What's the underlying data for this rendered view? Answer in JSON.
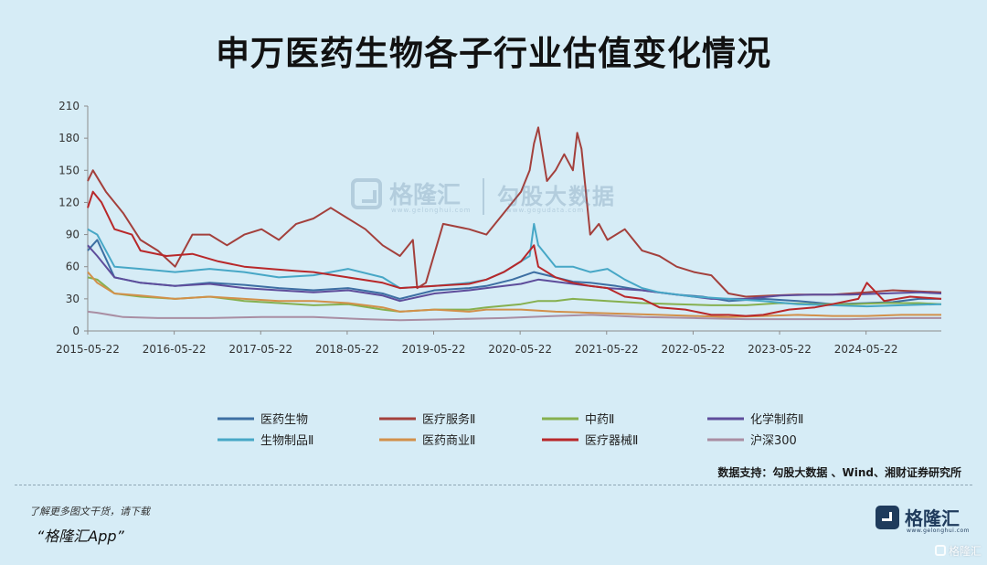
{
  "title": "申万医药生物各子行业估值变化情况",
  "watermark": {
    "name": "格隆汇",
    "url_a": "www.gelonghui.com",
    "name2": "勾股大数据",
    "url_b": "www.gogudata.com"
  },
  "source": "数据支持：勾股大数据 、Wind、湘财证券研究所",
  "promo": {
    "line1": "了解更多图文干货，请下载",
    "line2": "“格隆汇App”"
  },
  "brand": {
    "name": "格隆汇",
    "url": "www.gelonghui.com"
  },
  "corner": "格隆汇",
  "colors": {
    "background": "#d6ecf6",
    "axis": "#8c8c8c"
  },
  "chart_data": {
    "type": "line",
    "title": "申万医药生物各子行业估值变化情况",
    "x_labels": [
      "2015-05-22",
      "2016-05-22",
      "2017-05-22",
      "2018-05-22",
      "2019-05-22",
      "2020-05-22",
      "2021-05-22",
      "2022-05-22",
      "2023-05-22",
      "2024-05-22"
    ],
    "x_range": [
      2015.39,
      2025.26
    ],
    "ylim": [
      0,
      210
    ],
    "y_ticks": [
      0,
      30,
      60,
      90,
      120,
      150,
      180,
      210
    ],
    "grid": false,
    "legend_position": "bottom",
    "series": [
      {
        "name": "医药生物",
        "color": "#3d6fa3",
        "x": [
          2015.39,
          2015.5,
          2015.7,
          2016.0,
          2016.4,
          2016.8,
          2017.2,
          2017.6,
          2018.0,
          2018.4,
          2018.8,
          2019.0,
          2019.4,
          2019.8,
          2020.0,
          2020.3,
          2020.55,
          2020.8,
          2021.0,
          2021.2,
          2021.5,
          2021.8,
          2022.2,
          2022.5,
          2022.8,
          2023.2,
          2023.6,
          2024.0,
          2024.4,
          2024.7,
          2025.0,
          2025.26
        ],
        "y": [
          75,
          85,
          50,
          45,
          42,
          45,
          43,
          40,
          38,
          40,
          35,
          30,
          38,
          40,
          42,
          48,
          55,
          50,
          46,
          45,
          42,
          38,
          34,
          32,
          28,
          30,
          28,
          25,
          26,
          27,
          30,
          30
        ]
      },
      {
        "name": "医疗服务Ⅱ",
        "color": "#a3403c",
        "x": [
          2015.39,
          2015.45,
          2015.6,
          2015.8,
          2016.0,
          2016.2,
          2016.4,
          2016.6,
          2016.8,
          2017.0,
          2017.2,
          2017.4,
          2017.6,
          2017.8,
          2018.0,
          2018.2,
          2018.4,
          2018.6,
          2018.8,
          2019.0,
          2019.15,
          2019.2,
          2019.3,
          2019.5,
          2019.8,
          2020.0,
          2020.2,
          2020.4,
          2020.5,
          2020.55,
          2020.6,
          2020.7,
          2020.8,
          2020.9,
          2021.0,
          2021.05,
          2021.1,
          2021.2,
          2021.3,
          2021.4,
          2021.6,
          2021.8,
          2022.0,
          2022.2,
          2022.4,
          2022.6,
          2022.8,
          2023.0,
          2023.3,
          2023.6,
          2024.0,
          2024.4,
          2024.7,
          2025.0,
          2025.26
        ],
        "y": [
          140,
          150,
          130,
          110,
          85,
          75,
          60,
          90,
          90,
          80,
          90,
          95,
          85,
          100,
          105,
          115,
          105,
          95,
          80,
          70,
          85,
          40,
          45,
          100,
          95,
          90,
          110,
          130,
          150,
          175,
          190,
          140,
          150,
          165,
          150,
          185,
          170,
          90,
          100,
          85,
          95,
          75,
          70,
          60,
          55,
          52,
          35,
          32,
          33,
          34,
          34,
          36,
          38,
          37,
          36
        ]
      },
      {
        "name": "中药Ⅱ",
        "color": "#86b04f",
        "x": [
          2015.39,
          2015.5,
          2015.7,
          2016.0,
          2016.4,
          2016.8,
          2017.2,
          2017.6,
          2018.0,
          2018.4,
          2018.8,
          2019.0,
          2019.4,
          2019.8,
          2020.0,
          2020.4,
          2020.6,
          2020.8,
          2021.0,
          2021.4,
          2021.8,
          2022.2,
          2022.6,
          2023.0,
          2023.4,
          2023.8,
          2024.2,
          2024.6,
          2025.0,
          2025.26
        ],
        "y": [
          50,
          48,
          35,
          32,
          30,
          32,
          28,
          26,
          24,
          25,
          20,
          18,
          20,
          20,
          22,
          25,
          28,
          28,
          30,
          28,
          26,
          25,
          24,
          24,
          26,
          25,
          25,
          26,
          26,
          25
        ]
      },
      {
        "name": "化学制药Ⅱ",
        "color": "#5e4d9b",
        "x": [
          2015.39,
          2015.5,
          2015.7,
          2016.0,
          2016.4,
          2016.8,
          2017.2,
          2017.6,
          2018.0,
          2018.4,
          2018.8,
          2019.0,
          2019.4,
          2019.8,
          2020.0,
          2020.4,
          2020.6,
          2020.8,
          2021.0,
          2021.4,
          2021.8,
          2022.2,
          2022.6,
          2023.0,
          2023.4,
          2023.8,
          2024.2,
          2024.6,
          2025.0,
          2025.26
        ],
        "y": [
          80,
          70,
          50,
          45,
          42,
          44,
          40,
          38,
          36,
          38,
          33,
          28,
          35,
          38,
          40,
          44,
          48,
          46,
          44,
          40,
          38,
          34,
          30,
          30,
          33,
          34,
          34,
          35,
          36,
          35
        ]
      },
      {
        "name": "生物制品Ⅱ",
        "color": "#47a7c6",
        "x": [
          2015.39,
          2015.5,
          2015.7,
          2016.0,
          2016.4,
          2016.8,
          2017.2,
          2017.6,
          2018.0,
          2018.2,
          2018.4,
          2018.8,
          2019.0,
          2019.4,
          2019.8,
          2020.0,
          2020.2,
          2020.4,
          2020.5,
          2020.55,
          2020.6,
          2020.8,
          2021.0,
          2021.2,
          2021.4,
          2021.6,
          2021.8,
          2022.0,
          2022.4,
          2022.8,
          2023.2,
          2023.6,
          2024.0,
          2024.4,
          2024.8,
          2025.26
        ],
        "y": [
          95,
          90,
          60,
          58,
          55,
          58,
          55,
          50,
          52,
          55,
          58,
          50,
          40,
          42,
          45,
          48,
          55,
          65,
          70,
          100,
          80,
          60,
          60,
          55,
          58,
          48,
          40,
          36,
          32,
          30,
          28,
          25,
          24,
          23,
          24,
          25
        ]
      },
      {
        "name": "医药商业Ⅱ",
        "color": "#d2904a",
        "x": [
          2015.39,
          2015.5,
          2015.7,
          2016.0,
          2016.4,
          2016.8,
          2017.2,
          2017.6,
          2018.0,
          2018.4,
          2018.8,
          2019.0,
          2019.4,
          2019.8,
          2020.0,
          2020.4,
          2020.8,
          2021.2,
          2021.6,
          2022.0,
          2022.4,
          2022.8,
          2023.2,
          2023.6,
          2024.0,
          2024.4,
          2024.8,
          2025.26
        ],
        "y": [
          55,
          45,
          35,
          33,
          30,
          32,
          30,
          28,
          28,
          26,
          22,
          18,
          20,
          18,
          20,
          20,
          18,
          17,
          16,
          15,
          14,
          13,
          14,
          15,
          14,
          14,
          15,
          15
        ]
      },
      {
        "name": "医疗器械Ⅱ",
        "color": "#b8282a",
        "x": [
          2015.39,
          2015.45,
          2015.55,
          2015.7,
          2015.9,
          2016.0,
          2016.3,
          2016.6,
          2016.9,
          2017.2,
          2017.5,
          2017.8,
          2018.0,
          2018.4,
          2018.8,
          2019.0,
          2019.4,
          2019.8,
          2020.0,
          2020.2,
          2020.4,
          2020.5,
          2020.55,
          2020.6,
          2020.8,
          2021.0,
          2021.2,
          2021.4,
          2021.6,
          2021.8,
          2022.0,
          2022.3,
          2022.6,
          2022.8,
          2023.0,
          2023.2,
          2023.5,
          2023.8,
          2024.0,
          2024.3,
          2024.4,
          2024.6,
          2024.9,
          2025.26
        ],
        "y": [
          115,
          130,
          120,
          95,
          90,
          75,
          70,
          72,
          65,
          60,
          58,
          56,
          55,
          50,
          45,
          40,
          42,
          44,
          48,
          55,
          65,
          75,
          80,
          60,
          50,
          45,
          42,
          40,
          32,
          30,
          22,
          20,
          15,
          15,
          14,
          15,
          20,
          22,
          25,
          30,
          45,
          28,
          32,
          30
        ]
      },
      {
        "name": "沪深300",
        "color": "#a98ea3",
        "x": [
          2015.39,
          2015.5,
          2015.8,
          2016.2,
          2016.8,
          2017.4,
          2018.0,
          2018.6,
          2019.0,
          2019.6,
          2020.2,
          2020.8,
          2021.2,
          2021.8,
          2022.4,
          2023.0,
          2023.6,
          2024.2,
          2024.8,
          2025.26
        ],
        "y": [
          18,
          17,
          13,
          12,
          12,
          13,
          13,
          11,
          10,
          11,
          12,
          14,
          15,
          13,
          12,
          11,
          11,
          11,
          12,
          12
        ]
      }
    ]
  }
}
